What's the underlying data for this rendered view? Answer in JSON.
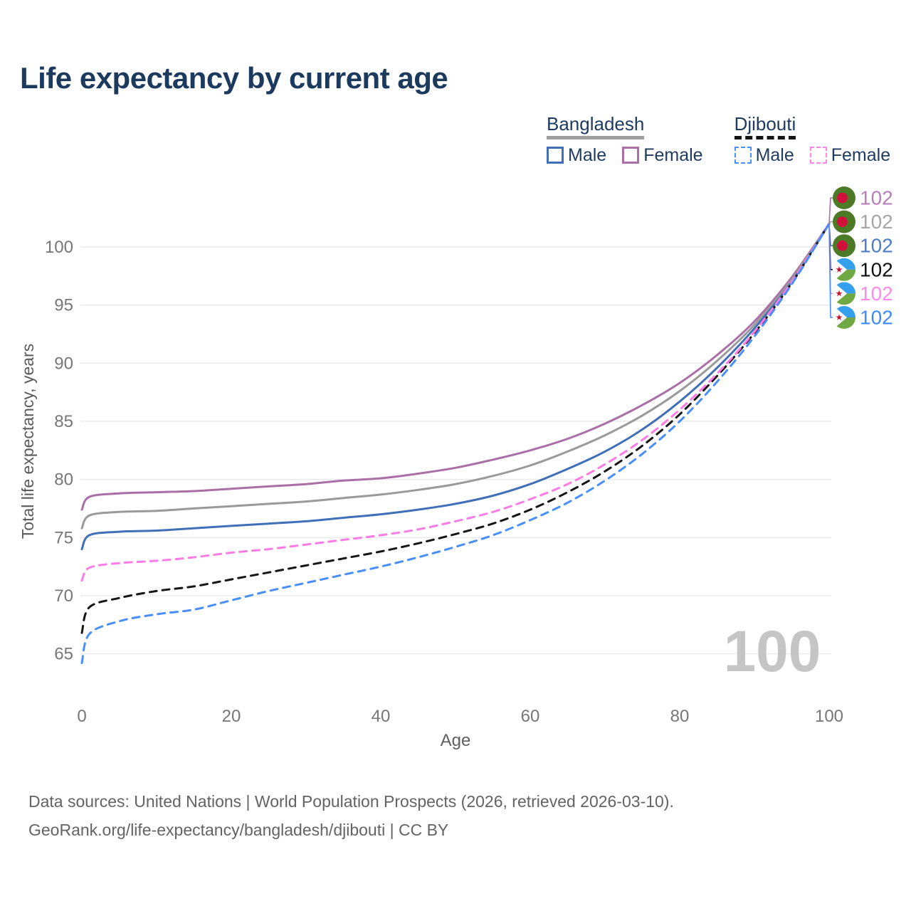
{
  "title": "Life expectancy by current age",
  "watermark": "100",
  "legend": {
    "groups": [
      {
        "country": "Bangladesh",
        "line_style": "solid",
        "items": [
          {
            "label": "Male",
            "color": "#3f70b7"
          },
          {
            "label": "Female",
            "color": "#aa6fa7"
          }
        ]
      },
      {
        "country": "Djibouti",
        "line_style": "dashed",
        "items": [
          {
            "label": "Male",
            "color": "#4a90fc"
          },
          {
            "label": "Female",
            "color": "#ff85e6"
          }
        ]
      }
    ]
  },
  "footer": {
    "line1": "Data sources: United Nations | World Population Prospects (2026, retrieved 2026-03-10).",
    "line2": "GeoRank.org/life-expectancy/bangladesh/djibouti | CC BY"
  },
  "chart_data": {
    "type": "line",
    "title": "Life expectancy by current age",
    "xlabel": "Age",
    "ylabel": "Total life expectancy, years",
    "xlim": [
      0,
      100
    ],
    "ylim": [
      63.5,
      103.5
    ],
    "x_ticks": [
      0,
      20,
      40,
      60,
      80,
      100
    ],
    "y_ticks": [
      65,
      70,
      75,
      80,
      85,
      90,
      95,
      100
    ],
    "grid": "horizontal",
    "legend_position": "top-right",
    "ages": [
      0,
      1,
      5,
      10,
      15,
      20,
      25,
      30,
      35,
      40,
      45,
      50,
      55,
      60,
      65,
      70,
      75,
      80,
      85,
      90,
      95,
      100
    ],
    "series": [
      {
        "name": "Bangladesh Female",
        "flag": "bangladesh",
        "color": "#aa6fa7",
        "dashed": false,
        "end_label": "102",
        "end_label_color": "#b77fb8",
        "label_row": 0,
        "values": [
          77.4,
          78.5,
          78.8,
          78.9,
          79.0,
          79.2,
          79.4,
          79.6,
          79.9,
          80.1,
          80.5,
          81.0,
          81.7,
          82.5,
          83.5,
          84.8,
          86.4,
          88.3,
          90.7,
          93.6,
          97.4,
          102
        ]
      },
      {
        "name": "Bangladesh Both sexes",
        "flag": "bangladesh",
        "color": "#9a9a9a",
        "dashed": false,
        "end_label": "102",
        "end_label_color": "#a6a6a6",
        "label_row": 1,
        "values": [
          75.8,
          76.9,
          77.2,
          77.3,
          77.5,
          77.7,
          77.9,
          78.1,
          78.4,
          78.7,
          79.1,
          79.6,
          80.3,
          81.2,
          82.4,
          83.8,
          85.5,
          87.6,
          90.2,
          93.3,
          97.2,
          102
        ]
      },
      {
        "name": "Bangladesh Male",
        "flag": "bangladesh",
        "color": "#3f70b7",
        "dashed": false,
        "end_label": "102",
        "end_label_color": "#4d7cc9",
        "label_row": 2,
        "values": [
          74.0,
          75.2,
          75.5,
          75.6,
          75.8,
          76.0,
          76.2,
          76.4,
          76.7,
          77.0,
          77.4,
          77.9,
          78.6,
          79.6,
          80.9,
          82.4,
          84.3,
          86.7,
          89.6,
          93.0,
          97.0,
          102
        ]
      },
      {
        "name": "Djibouti Both sexes",
        "flag": "djibouti",
        "color": "#161616",
        "dashed": true,
        "end_label": "102",
        "end_label_color": "#111111",
        "label_row": 3,
        "values": [
          66.8,
          69.0,
          69.8,
          70.4,
          70.8,
          71.4,
          72.0,
          72.6,
          73.2,
          73.8,
          74.5,
          75.3,
          76.2,
          77.4,
          78.9,
          80.7,
          82.9,
          85.6,
          88.9,
          92.6,
          96.9,
          102
        ]
      },
      {
        "name": "Djibouti Female",
        "flag": "djibouti",
        "color": "#fb7ce4",
        "dashed": true,
        "end_label": "102",
        "end_label_color": "#ff8ae8",
        "label_row": 4,
        "values": [
          71.3,
          72.4,
          72.8,
          73.0,
          73.3,
          73.7,
          74.0,
          74.4,
          74.8,
          75.2,
          75.7,
          76.4,
          77.2,
          78.3,
          79.6,
          81.3,
          83.4,
          86.0,
          89.1,
          92.7,
          97.0,
          102
        ]
      },
      {
        "name": "Djibouti Male",
        "flag": "djibouti",
        "color": "#4a8ff8",
        "dashed": true,
        "end_label": "102",
        "end_label_color": "#3f8bfd",
        "label_row": 5,
        "values": [
          64.2,
          66.7,
          67.8,
          68.4,
          68.8,
          69.6,
          70.4,
          71.1,
          71.8,
          72.5,
          73.3,
          74.2,
          75.2,
          76.5,
          78.0,
          79.9,
          82.2,
          85.0,
          88.4,
          92.3,
          96.8,
          102
        ]
      }
    ]
  }
}
